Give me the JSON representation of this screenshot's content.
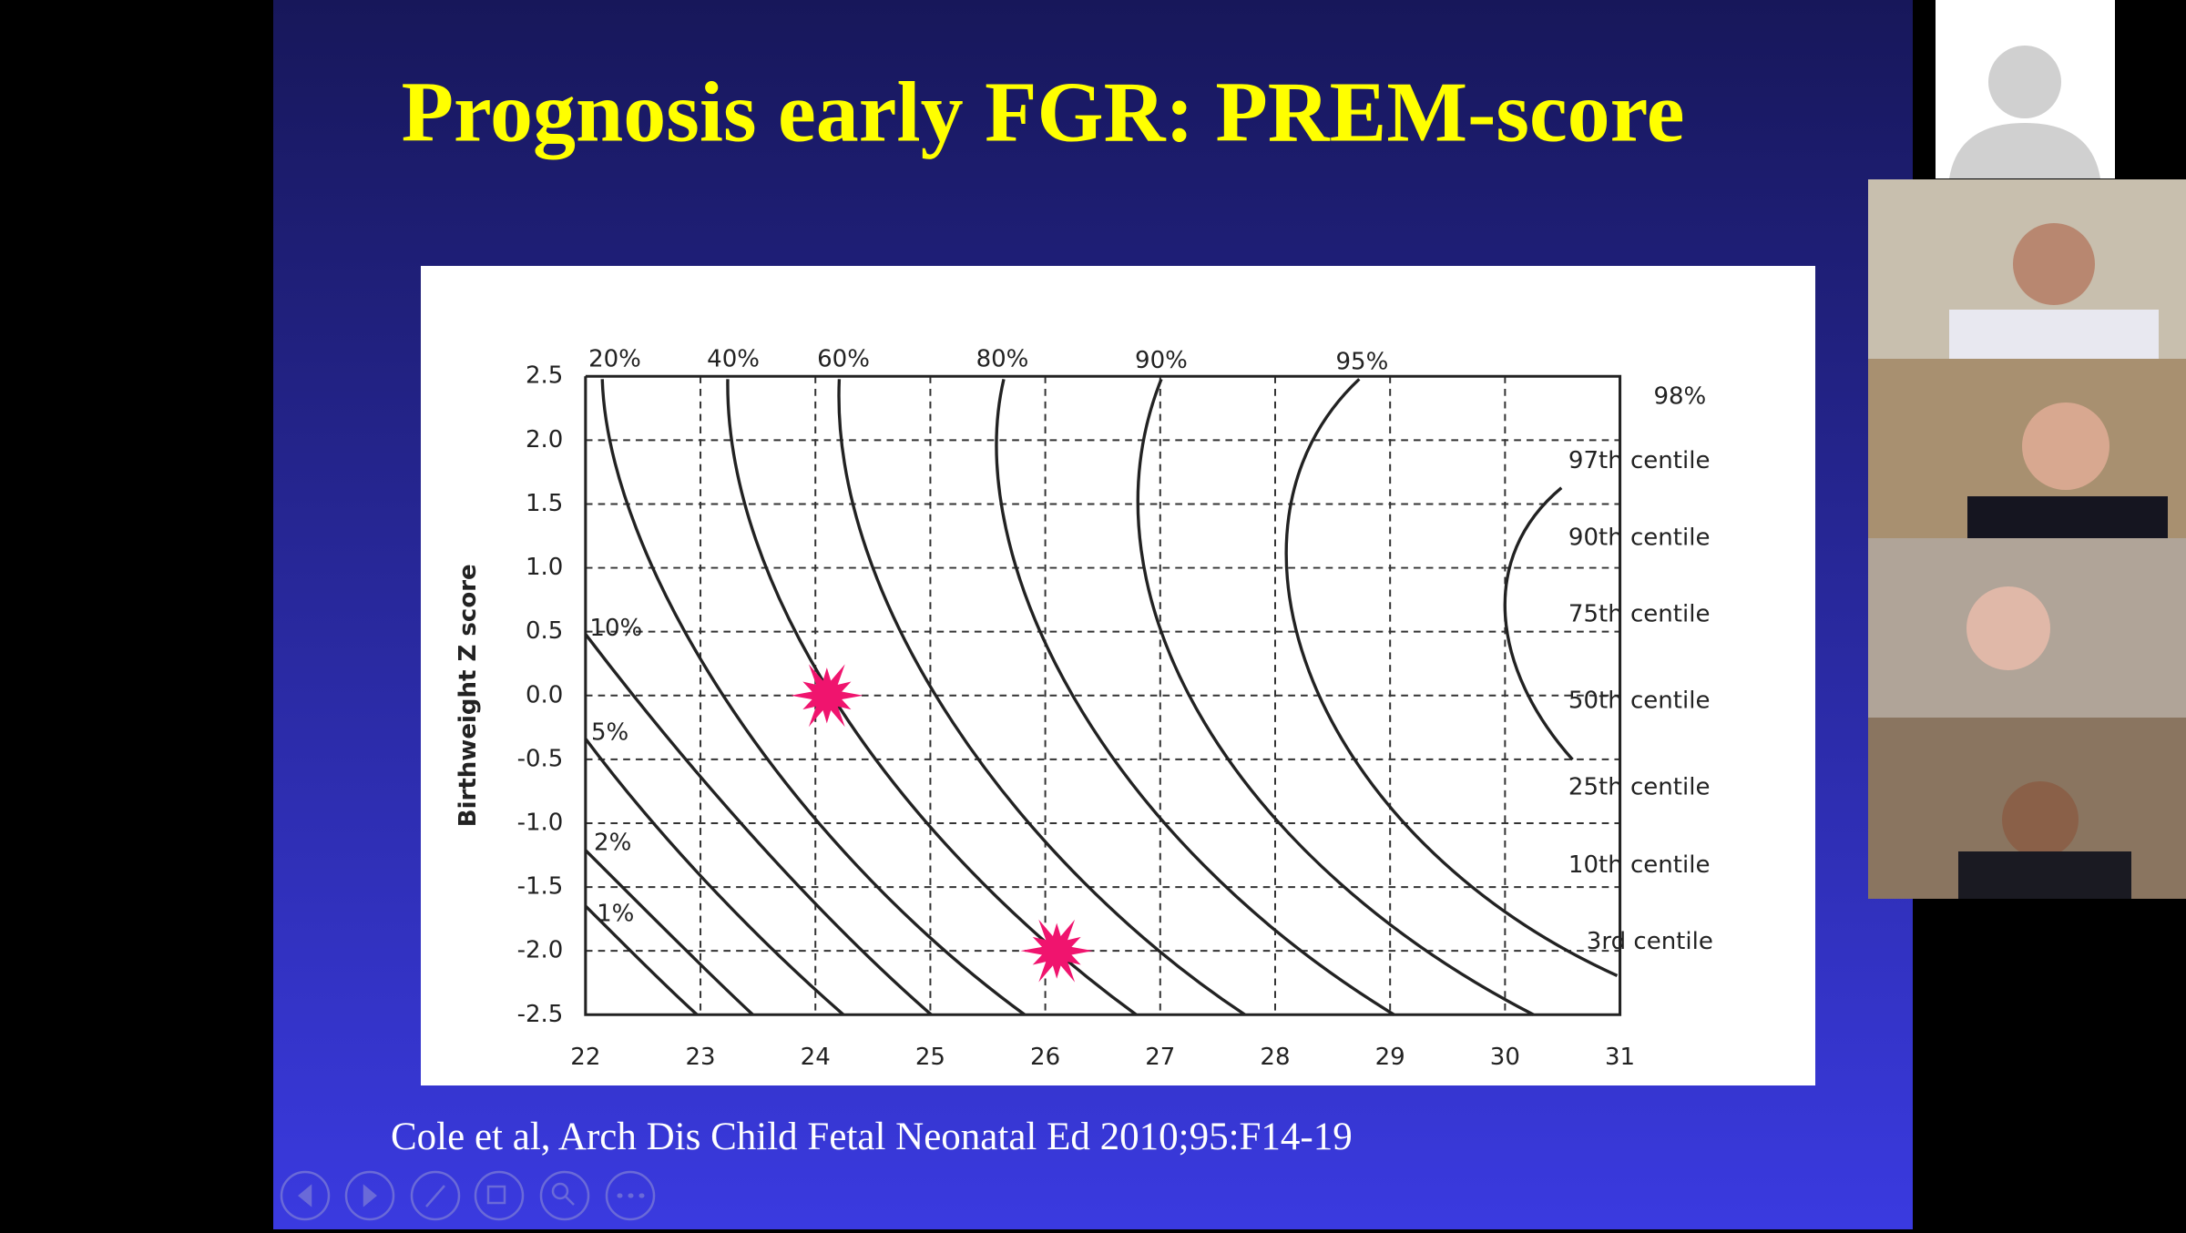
{
  "slide": {
    "title": "Prognosis early FGR: PREM-score",
    "citation": "Cole et al, Arch Dis Child Fetal Neonatal Ed 2010;95:F14-19",
    "chart": {
      "type": "line",
      "y_label": "Birthweight Z score",
      "xlim": [
        22,
        31
      ],
      "ylim": [
        -2.5,
        2.5
      ],
      "xticks": [
        22,
        23,
        24,
        25,
        26,
        27,
        28,
        29,
        30,
        31
      ],
      "yticks": [
        2.5,
        {
          "value": 2,
          "label": "2.0"
        },
        1.5,
        {
          "value": 1,
          "label": "1.0"
        },
        0.5,
        {
          "value": 0,
          "label": "0.0"
        },
        -0.5,
        {
          "value": -1,
          "label": "-1.0"
        },
        -1.5,
        {
          "value": -2,
          "label": "-2.0"
        },
        -2.5
      ],
      "grid": true,
      "curve_labels": [
        "20%",
        "40%",
        "60%",
        "80%",
        "90%",
        "95%",
        "98%"
      ],
      "left_curve_labels": [
        "10%",
        "5%",
        "2%",
        "1%"
      ],
      "centile_labels": [
        "97th centile",
        "90th centile",
        "75th centile",
        "50th centile",
        "25th centile",
        "10th centile",
        "3rd centile"
      ],
      "markers": [
        {
          "x": 24.1,
          "y": 0.0
        },
        {
          "x": 26.1,
          "y": -2.0
        }
      ]
    }
  }
}
